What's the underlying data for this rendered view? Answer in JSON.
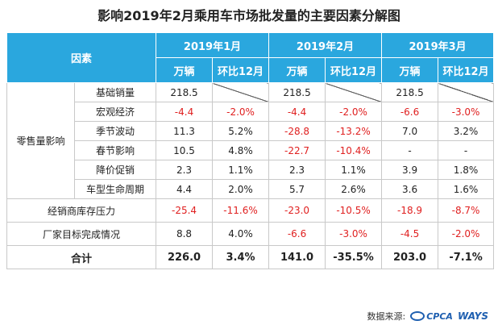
{
  "title": "影响2019年2月乘用车市场批发量的主要因素分解图",
  "header": {
    "factor_label": "因素",
    "months": [
      "2019年1月",
      "2019年2月",
      "2019年3月"
    ],
    "unit": "万辆",
    "mom": "环比12月"
  },
  "group_label": "零售量影响",
  "rows": [
    {
      "name": "基础销量",
      "cells": [
        "218.5",
        "",
        "218.5",
        "",
        "218.5",
        ""
      ]
    },
    {
      "name": "宏观经济",
      "cells": [
        "-4.4",
        "-2.0%",
        "-4.4",
        "-2.0%",
        "-6.6",
        "-3.0%"
      ]
    },
    {
      "name": "季节波动",
      "cells": [
        "11.3",
        "5.2%",
        "-28.8",
        "-13.2%",
        "7.0",
        "3.2%"
      ]
    },
    {
      "name": "春节影响",
      "cells": [
        "10.5",
        "4.8%",
        "-22.7",
        "-10.4%",
        "-",
        "-"
      ]
    },
    {
      "name": "降价促销",
      "cells": [
        "2.3",
        "1.1%",
        "2.3",
        "1.1%",
        "3.9",
        "1.8%"
      ]
    },
    {
      "name": "车型生命周期",
      "cells": [
        "4.4",
        "2.0%",
        "5.7",
        "2.6%",
        "3.6",
        "1.6%"
      ]
    }
  ],
  "main_rows": [
    {
      "name": "经销商库存压力",
      "cells": [
        "-25.4",
        "-11.6%",
        "-23.0",
        "-10.5%",
        "-18.9",
        "-8.7%"
      ]
    },
    {
      "name": "厂家目标完成情况",
      "cells": [
        "8.8",
        "4.0%",
        "-6.6",
        "-3.0%",
        "-4.5",
        "-2.0%"
      ]
    }
  ],
  "total": {
    "name": "合计",
    "cells": [
      "226.0",
      "3.4%",
      "141.0",
      "-35.5%",
      "203.0",
      "-7.1%"
    ]
  },
  "source": {
    "label": "数据来源:",
    "cpca": "CPCA",
    "ways": "WAYS"
  },
  "colors": {
    "header_bg": "#2aa7de",
    "negative": "#e02020"
  }
}
